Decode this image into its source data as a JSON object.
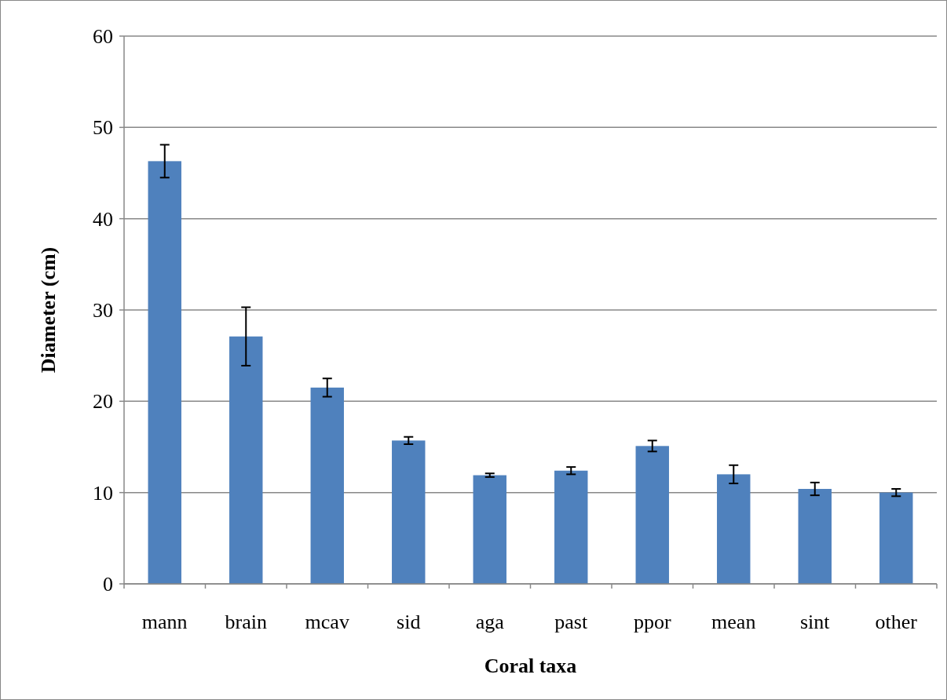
{
  "chart_data": {
    "type": "bar",
    "xlabel": "Coral taxa",
    "ylabel": "Diameter (cm)",
    "categories": [
      "mann",
      "brain",
      "mcav",
      "sid",
      "aga",
      "past",
      "ppor",
      "mean",
      "sint",
      "other"
    ],
    "values": [
      46.3,
      27.1,
      21.5,
      15.7,
      11.9,
      12.4,
      15.1,
      12.0,
      10.4,
      10.0
    ],
    "errors": [
      1.8,
      3.2,
      1.0,
      0.4,
      0.2,
      0.4,
      0.6,
      1.0,
      0.7,
      0.4
    ],
    "color": "#4f81bd",
    "ylim": [
      0,
      60
    ],
    "yticks": [
      0,
      10,
      20,
      30,
      40,
      50,
      60
    ],
    "grid": "y"
  }
}
